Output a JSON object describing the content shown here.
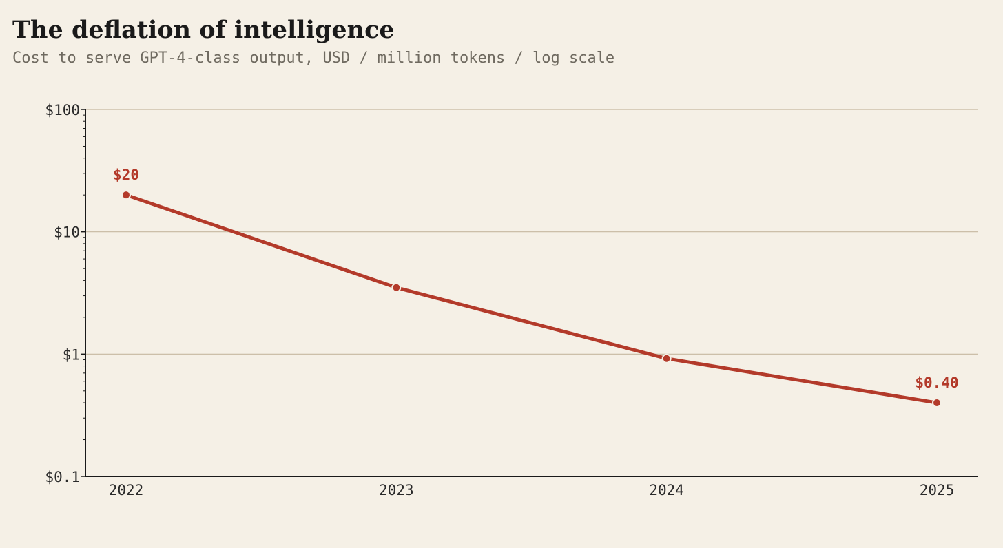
{
  "chart_data": {
    "type": "line",
    "title": "The deflation of intelligence",
    "subtitle": "Cost to serve GPT-4-class output, USD / million tokens / log scale",
    "xlabel": "",
    "ylabel": "",
    "y_scale": "log",
    "ylim": [
      0.1,
      100
    ],
    "y_ticks": [
      100,
      10,
      1,
      0.1
    ],
    "y_tick_labels": [
      "$100",
      "$10",
      "$1",
      "$0.1"
    ],
    "x": [
      "2022",
      "2023",
      "2024",
      "2025"
    ],
    "series": [
      {
        "values": [
          20,
          3.5,
          0.92,
          0.4
        ]
      }
    ],
    "annotations": [
      {
        "index": 0,
        "text": "$20"
      },
      {
        "index": 3,
        "text": "$0.40"
      }
    ],
    "grid": "horizontal at decades",
    "colors": {
      "line": "#b33a2a",
      "grid": "#c6b8a0",
      "axis": "#1a1a1a",
      "background": "#f5f0e6"
    }
  }
}
